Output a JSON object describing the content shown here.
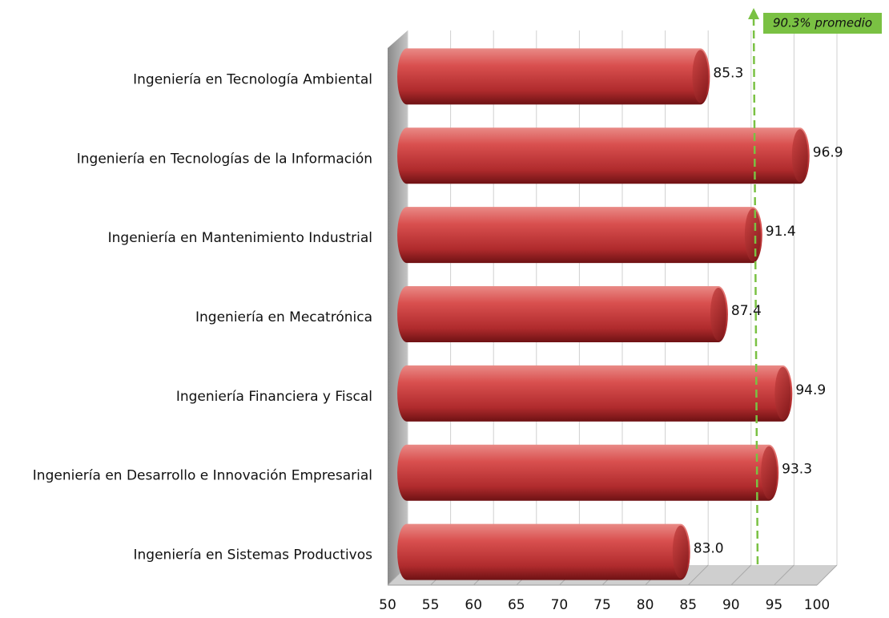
{
  "chart_data": {
    "type": "bar",
    "orientation": "horizontal",
    "categories": [
      "Ingeniería en Tecnología Ambiental",
      "Ingeniería en Tecnologías de la Información",
      "Ingeniería en Mantenimiento Industrial",
      "Ingeniería en Mecatrónica",
      "Ingeniería Financiera y Fiscal",
      "Ingeniería en Desarrollo e Innovación Empresarial",
      "Ingeniería en Sistemas Productivos"
    ],
    "values": [
      85.3,
      96.9,
      91.4,
      87.4,
      94.9,
      93.3,
      83.0
    ],
    "value_labels": [
      "85.3",
      "96.9",
      "91.4",
      "87.4",
      "94.9",
      "93.3",
      "83.0"
    ],
    "color": "#c0393b",
    "xlim": [
      50,
      100
    ],
    "xticks": [
      50,
      55,
      60,
      65,
      70,
      75,
      80,
      85,
      90,
      95,
      100
    ],
    "grid": true,
    "average": {
      "value": 90.3,
      "label": "90.3% promedio"
    },
    "average_color": "#7ac143"
  }
}
